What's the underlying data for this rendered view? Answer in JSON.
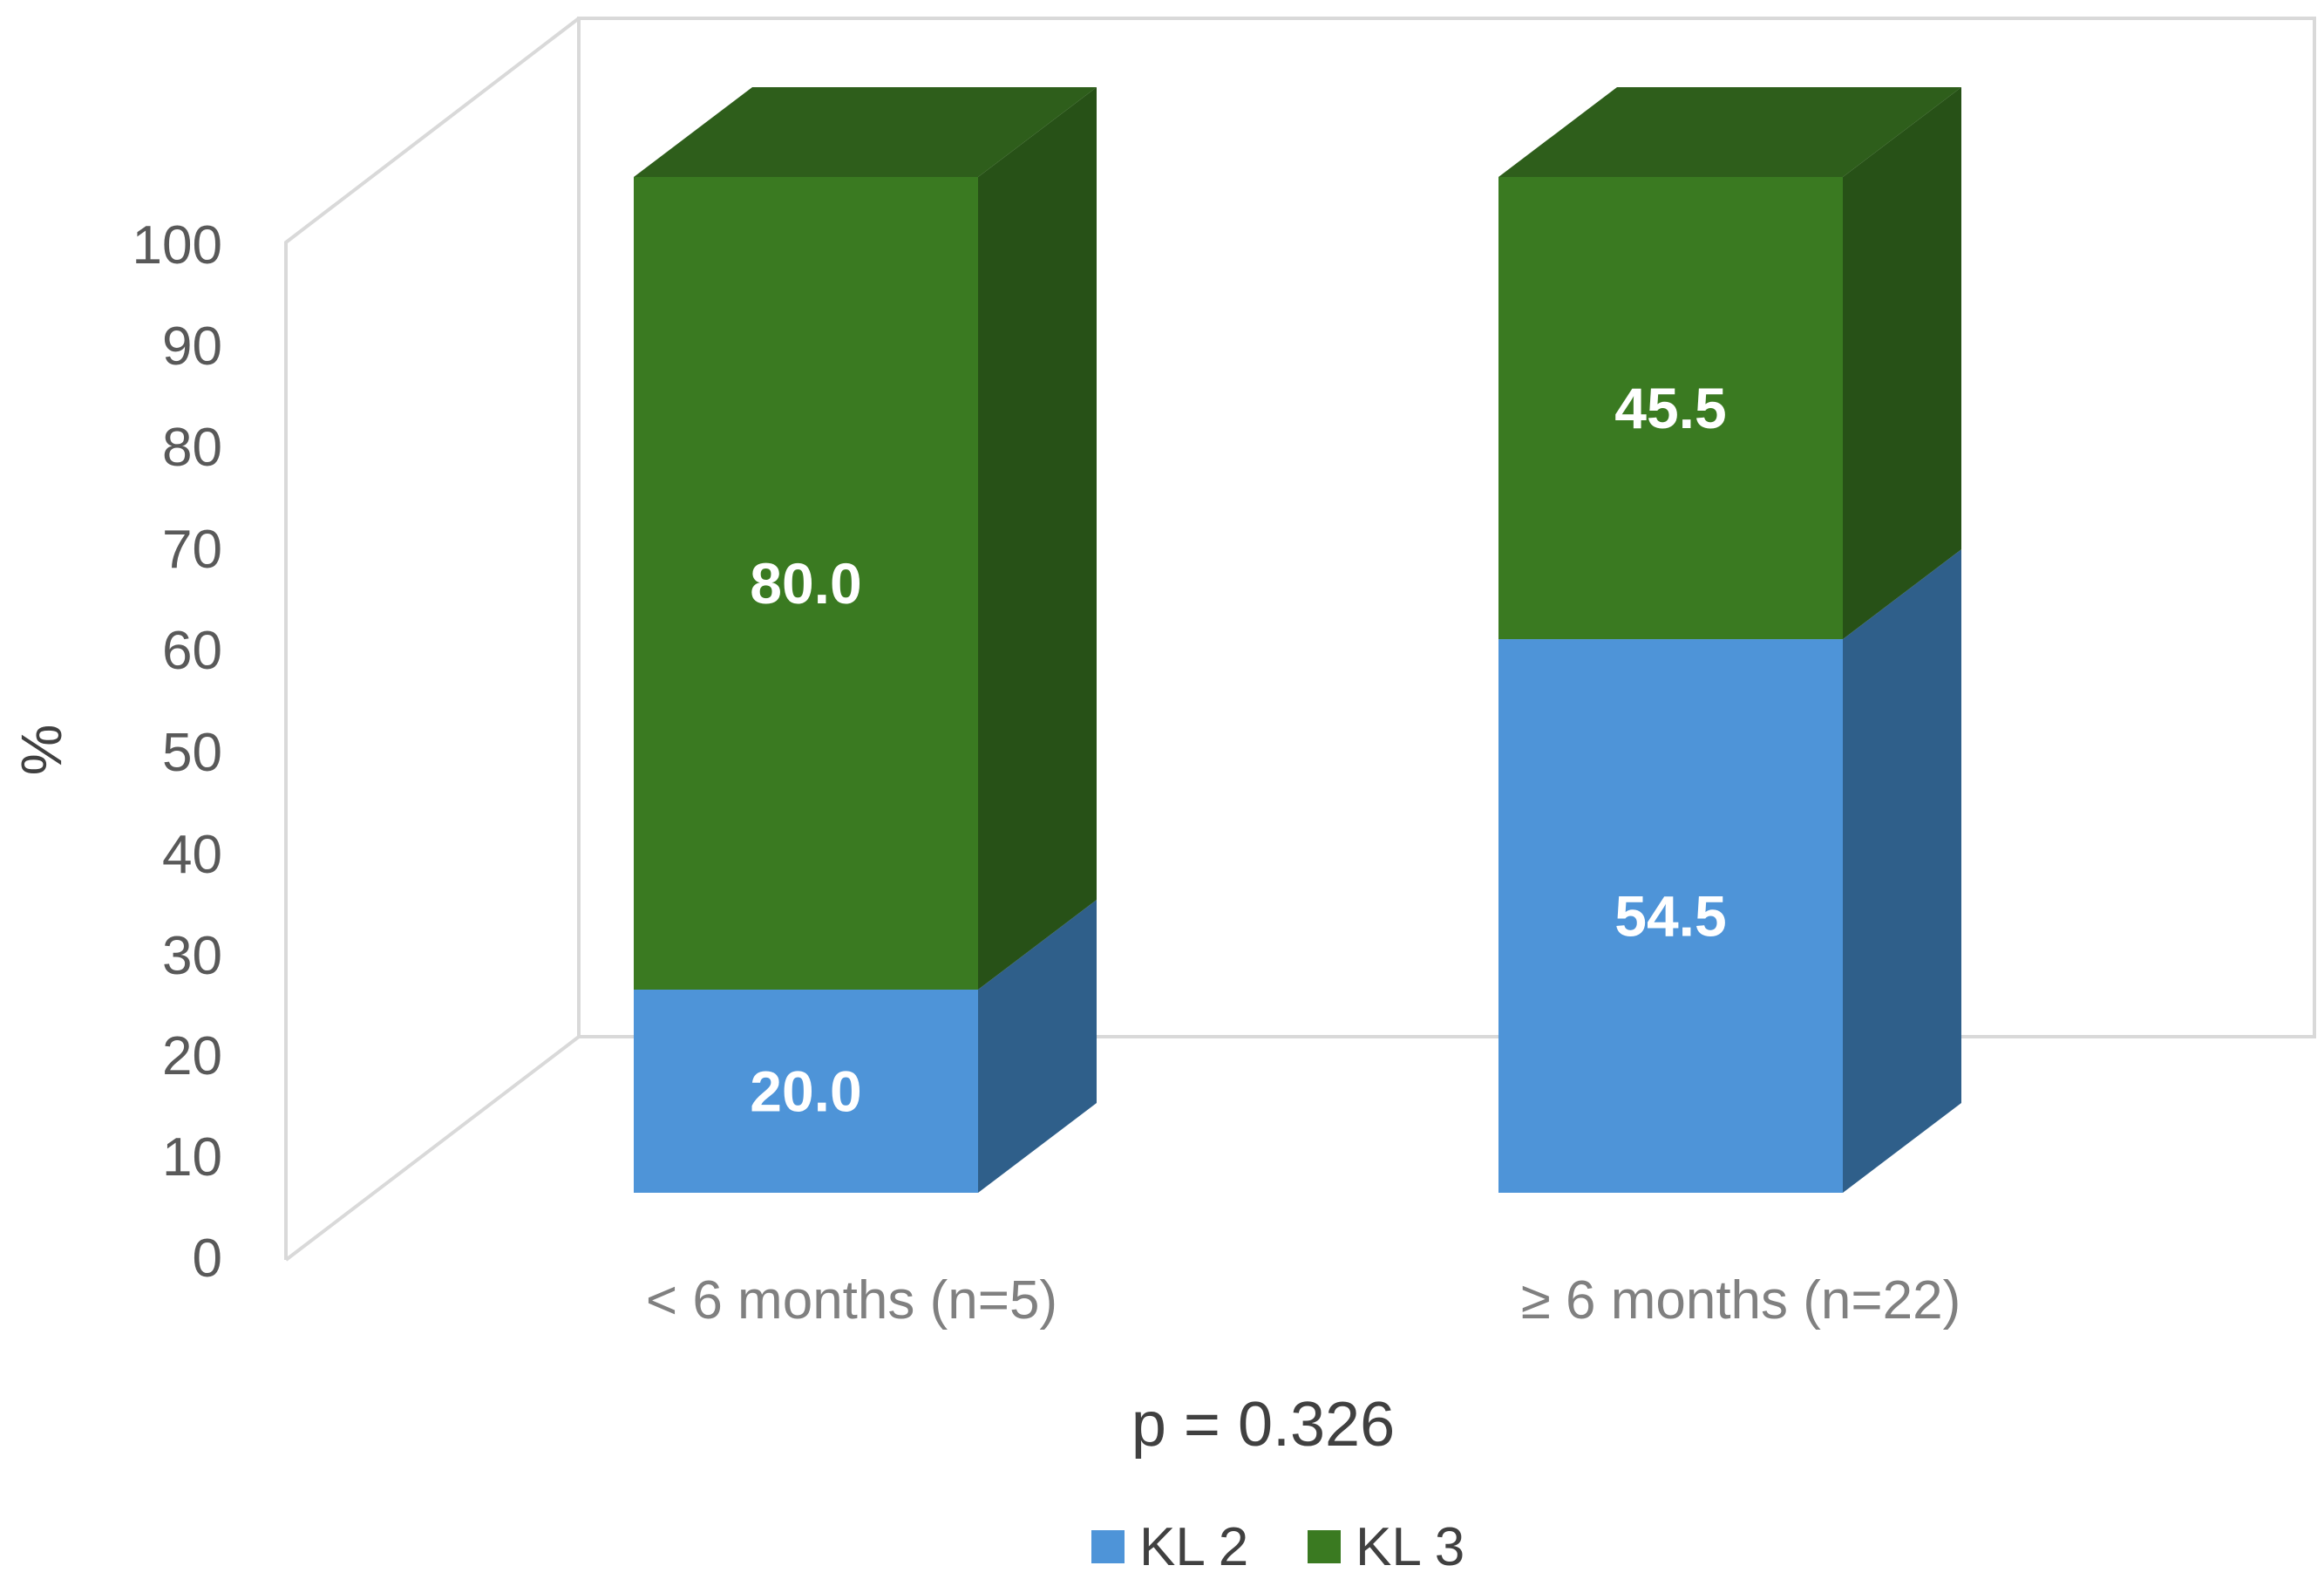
{
  "chart_data": {
    "type": "bar",
    "stacked": true,
    "three_d": true,
    "categories": [
      "< 6 months (n=5)",
      "≥ 6 months (n=22)"
    ],
    "series": [
      {
        "name": "KL 2",
        "values": [
          20.0,
          54.5
        ],
        "color": "#4E94D8",
        "side_color": "#2F5F8A"
      },
      {
        "name": "KL 3",
        "values": [
          80.0,
          45.5
        ],
        "color": "#3A7A21",
        "side_color": "#275117",
        "top_color": "#2E5E1B"
      }
    ],
    "data_labels": [
      [
        "20.0",
        "54.5"
      ],
      [
        "80.0",
        "45.5"
      ]
    ],
    "ylabel": "%",
    "ylim": [
      0,
      100
    ],
    "yticks": [
      0,
      10,
      20,
      30,
      40,
      50,
      60,
      70,
      80,
      90,
      100
    ],
    "annotation": "p = 0.326",
    "legend_position": "bottom",
    "grid": false
  }
}
